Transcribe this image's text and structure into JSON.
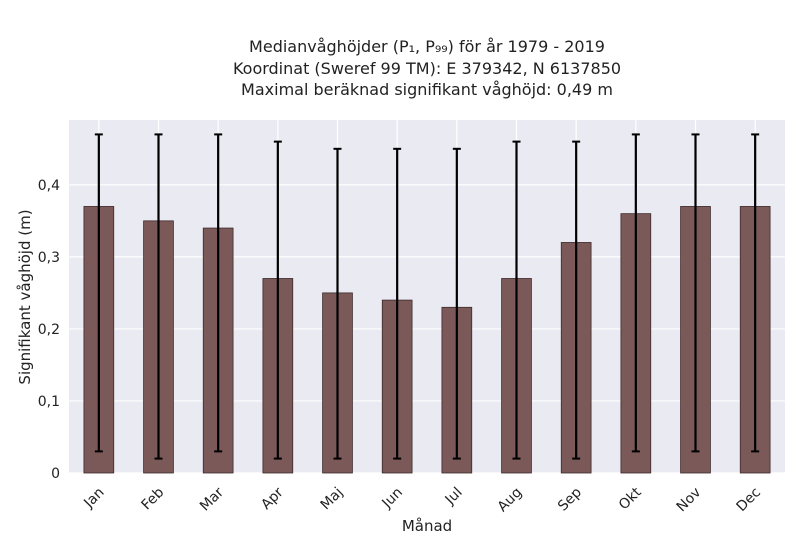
{
  "chart_data": {
    "type": "bar",
    "title_lines": [
      "Medianvåghöjder (P₁, P₉₉) för år 1979 - 2019",
      "Koordinat (Sweref 99 TM): E 379342, N 6137850",
      "Maximal beräknad signifikant våghöjd: 0,49 m"
    ],
    "xlabel": "Månad",
    "ylabel": "Signifikant våghöjd (m)",
    "categories": [
      "Jan",
      "Feb",
      "Mar",
      "Apr",
      "Maj",
      "Jun",
      "Jul",
      "Aug",
      "Sep",
      "Okt",
      "Nov",
      "Dec"
    ],
    "values": [
      0.37,
      0.35,
      0.34,
      0.27,
      0.25,
      0.24,
      0.23,
      0.27,
      0.32,
      0.36,
      0.37,
      0.37
    ],
    "p1": [
      0.03,
      0.02,
      0.03,
      0.02,
      0.02,
      0.02,
      0.02,
      0.02,
      0.02,
      0.03,
      0.03,
      0.03
    ],
    "p99": [
      0.47,
      0.47,
      0.47,
      0.46,
      0.45,
      0.45,
      0.45,
      0.46,
      0.46,
      0.47,
      0.47,
      0.47
    ],
    "ylim": [
      0,
      0.49
    ],
    "yticks": [
      0,
      0.1,
      0.2,
      0.3,
      0.4
    ],
    "ytick_labels": [
      "0",
      "0,1",
      "0,2",
      "0,3",
      "0,4"
    ],
    "grid": true,
    "colors": {
      "bar": "#7b5959",
      "bar_edge": "#3d2b2b",
      "background": "#eaeaf2",
      "grid": "#ffffff",
      "errorbar": "#000000"
    }
  }
}
